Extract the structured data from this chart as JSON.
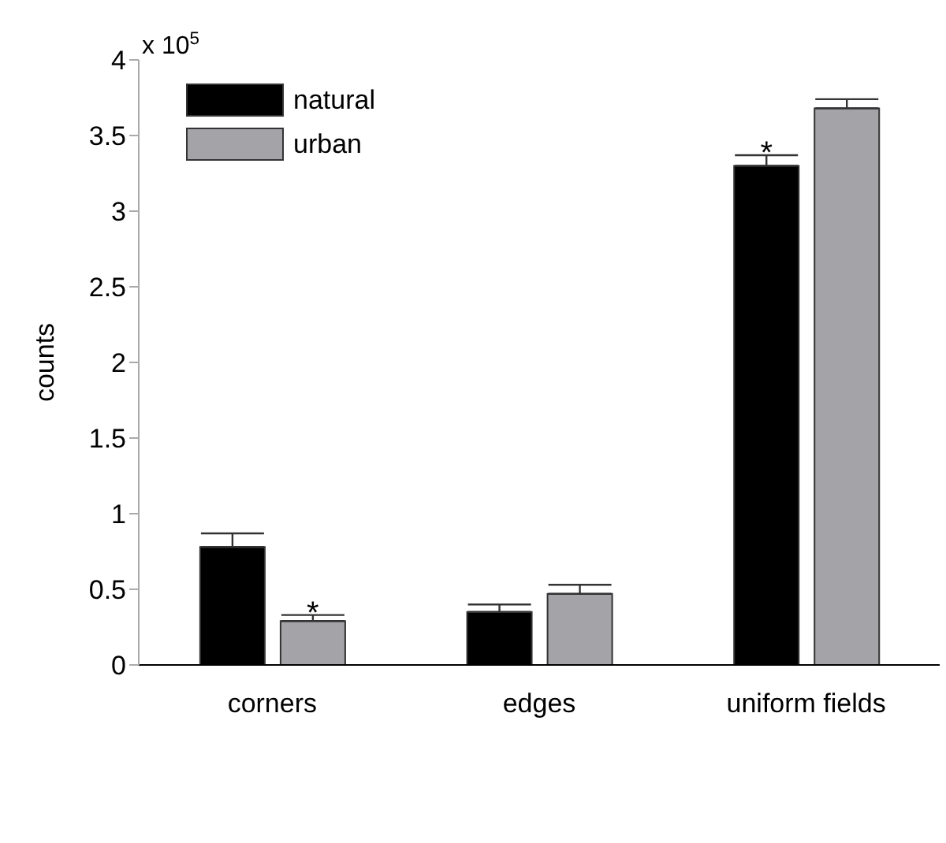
{
  "chart_data": {
    "type": "bar",
    "ylabel": "counts",
    "categories": [
      "corners",
      "edges",
      "uniform fields"
    ],
    "series": [
      {
        "name": "natural",
        "color": "#000000",
        "values": [
          0.78,
          0.35,
          3.3
        ],
        "errors": [
          [
            0.78,
            0.87
          ],
          [
            0.35,
            0.4
          ],
          [
            3.3,
            3.37
          ]
        ]
      },
      {
        "name": "urban",
        "color": "#a4a4a8",
        "values": [
          0.29,
          0.47,
          3.68
        ],
        "errors": [
          [
            0.29,
            0.33
          ],
          [
            0.47,
            0.53
          ],
          [
            3.68,
            3.74
          ]
        ]
      }
    ],
    "ylim": [
      0,
      4
    ],
    "yticks": [
      0,
      0.5,
      1,
      1.5,
      2,
      2.5,
      3,
      3.5,
      4
    ],
    "grid": false,
    "legend": "top left",
    "annotations": [
      "x 10$^{5}$",
      {
        "text": "*",
        "x": "corners",
        "y": 0.29
      },
      {
        "text": "*",
        "x": "uniform fields",
        "y": 3.3
      }
    ]
  }
}
